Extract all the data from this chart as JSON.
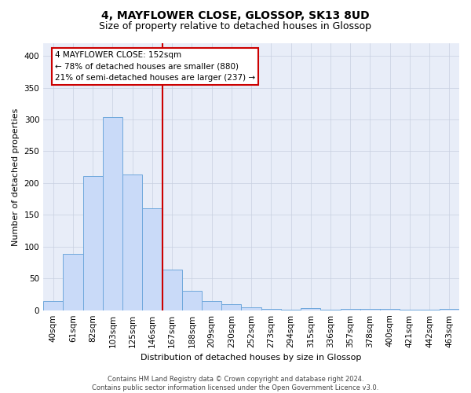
{
  "title": "4, MAYFLOWER CLOSE, GLOSSOP, SK13 8UD",
  "subtitle": "Size of property relative to detached houses in Glossop",
  "xlabel": "Distribution of detached houses by size in Glossop",
  "ylabel": "Number of detached properties",
  "footer_line1": "Contains HM Land Registry data © Crown copyright and database right 2024.",
  "footer_line2": "Contains public sector information licensed under the Open Government Licence v3.0.",
  "bar_labels": [
    "40sqm",
    "61sqm",
    "82sqm",
    "103sqm",
    "125sqm",
    "146sqm",
    "167sqm",
    "188sqm",
    "209sqm",
    "230sqm",
    "252sqm",
    "273sqm",
    "294sqm",
    "315sqm",
    "336sqm",
    "357sqm",
    "378sqm",
    "400sqm",
    "421sqm",
    "442sqm",
    "463sqm"
  ],
  "bar_values": [
    14,
    89,
    211,
    304,
    213,
    160,
    64,
    30,
    15,
    9,
    5,
    2,
    1,
    3,
    1,
    2,
    2,
    2,
    1,
    1,
    2
  ],
  "bar_color": "#c9daf8",
  "bar_edgecolor": "#6fa8dc",
  "property_label": "4 MAYFLOWER CLOSE: 152sqm",
  "annotation_line1": "← 78% of detached houses are smaller (880)",
  "annotation_line2": "21% of semi-detached houses are larger (237) →",
  "vline_color": "#cc0000",
  "annotation_box_edgecolor": "#cc0000",
  "vline_position": 5.5,
  "ylim": [
    0,
    420
  ],
  "yticks": [
    0,
    50,
    100,
    150,
    200,
    250,
    300,
    350,
    400
  ],
  "bg_color": "#ffffff",
  "grid_color": "#c8d0e0",
  "plot_bg_color": "#e8edf8",
  "title_fontsize": 10,
  "subtitle_fontsize": 9,
  "axis_label_fontsize": 8,
  "tick_fontsize": 7.5,
  "annotation_fontsize": 7.5,
  "footer_fontsize": 6
}
